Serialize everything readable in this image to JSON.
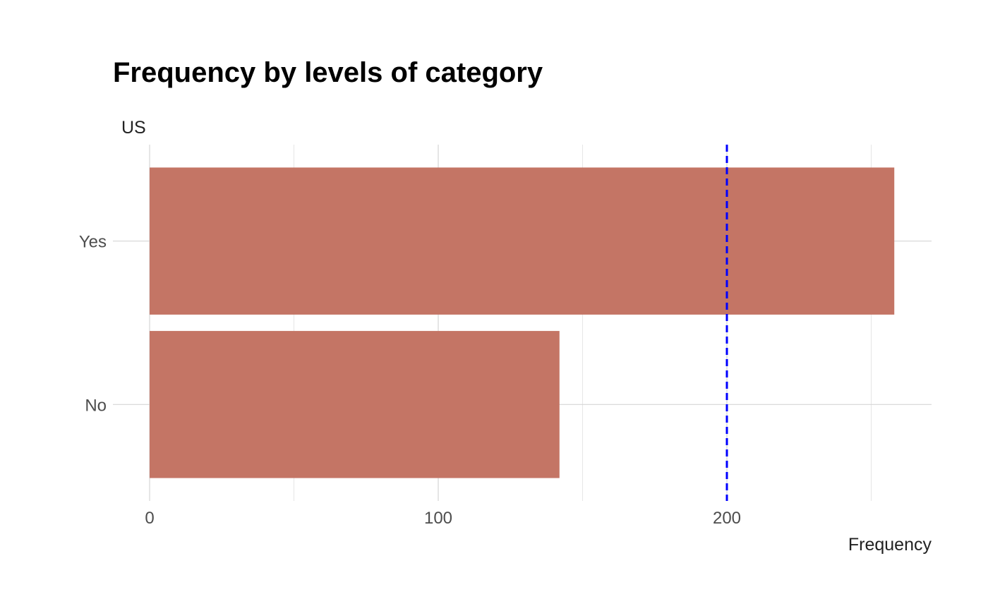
{
  "chart_data": {
    "type": "bar",
    "orientation": "horizontal",
    "title": "Frequency by levels of category",
    "ylabel": "US",
    "xlabel": "Frequency",
    "categories": [
      "Yes",
      "No"
    ],
    "values": [
      258,
      142
    ],
    "xlim": [
      0,
      271
    ],
    "x_ticks": [
      0,
      100,
      200
    ],
    "x_tick_labels": [
      "0",
      "100",
      "200"
    ],
    "reference_line": {
      "value": 200,
      "style": "dashed",
      "color": "#0000ff"
    },
    "bar_color": "#c47565",
    "grid": true
  }
}
